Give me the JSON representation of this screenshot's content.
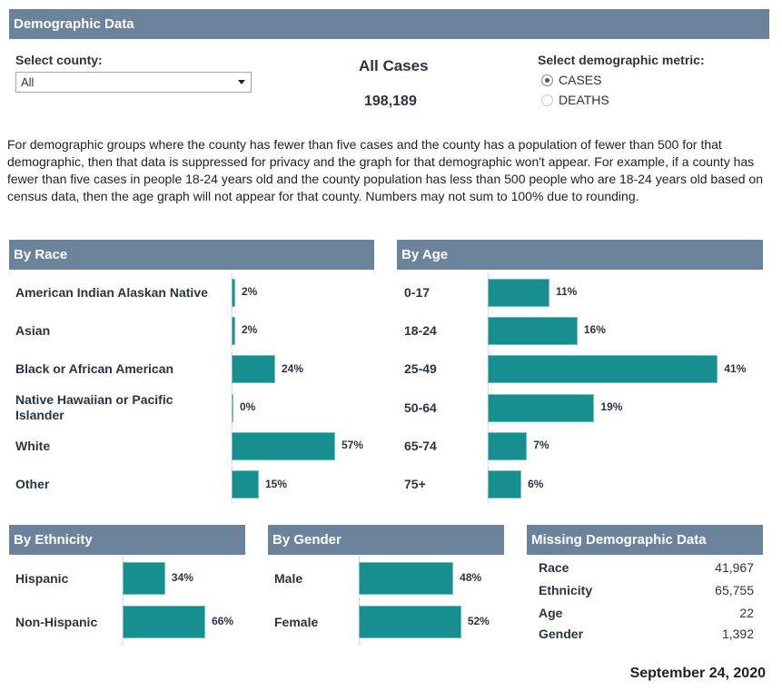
{
  "header": {
    "title": "Demographic Data"
  },
  "county": {
    "label": "Select county:",
    "selected": "All"
  },
  "summary": {
    "title": "All Cases",
    "value": "198,189"
  },
  "metric": {
    "label": "Select demographic metric:",
    "options": [
      {
        "label": "CASES",
        "selected": true
      },
      {
        "label": "DEATHS",
        "selected": false
      }
    ]
  },
  "note": "For demographic groups where the county has fewer than five cases and the county has a population of fewer than 500 for that demographic, then that data is suppressed for privacy and the graph for that demographic won't appear. For example, if a county has fewer than five cases in people 18-24 years old and the county population has less than 500 people who are 18-24 years old based on census data, then the age graph will not appear for that county. Numbers may not sum to 100% due to rounding.",
  "colors": {
    "bar": "#178f90",
    "header": "#6b849c"
  },
  "chart_data": [
    {
      "type": "bar",
      "orientation": "horizontal",
      "title": "By Race",
      "categories": [
        "American Indian Alaskan Native",
        "Asian",
        "Black or African American",
        "Native Hawaiian or Pacific Islander",
        "White",
        "Other"
      ],
      "values": [
        2,
        2,
        24,
        0,
        57,
        15
      ],
      "labels": [
        "2%",
        "2%",
        "24%",
        "0%",
        "57%",
        "15%"
      ],
      "unit": "%"
    },
    {
      "type": "bar",
      "orientation": "horizontal",
      "title": "By Age",
      "categories": [
        "0-17",
        "18-24",
        "25-49",
        "50-64",
        "65-74",
        "75+"
      ],
      "values": [
        11,
        16,
        41,
        19,
        7,
        6
      ],
      "labels": [
        "11%",
        "16%",
        "41%",
        "19%",
        "7%",
        "6%"
      ],
      "unit": "%"
    },
    {
      "type": "bar",
      "orientation": "horizontal",
      "title": "By Ethnicity",
      "categories": [
        "Hispanic",
        "Non-Hispanic"
      ],
      "values": [
        34,
        66
      ],
      "labels": [
        "34%",
        "66%"
      ],
      "unit": "%"
    },
    {
      "type": "bar",
      "orientation": "horizontal",
      "title": "By Gender",
      "categories": [
        "Male",
        "Female"
      ],
      "values": [
        48,
        52
      ],
      "labels": [
        "48%",
        "52%"
      ],
      "unit": "%"
    }
  ],
  "missing": {
    "title": "Missing Demographic Data",
    "rows": [
      {
        "label": "Race",
        "value": "41,967"
      },
      {
        "label": "Ethnicity",
        "value": "65,755"
      },
      {
        "label": "Age",
        "value": "22"
      },
      {
        "label": "Gender",
        "value": "1,392"
      }
    ]
  },
  "date": "September 24, 2020"
}
